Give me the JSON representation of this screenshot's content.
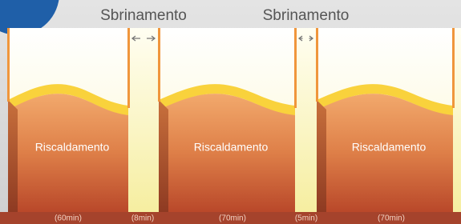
{
  "defrost_labels": [
    "Sbrinamento",
    "Sbrinamento"
  ],
  "heating_labels": [
    "Riscaldamento",
    "Riscaldamento",
    "Riscaldamento"
  ],
  "durations": [
    "(60min)",
    "(8min)",
    "(70min)",
    "(5min)",
    "(70min)"
  ]
}
